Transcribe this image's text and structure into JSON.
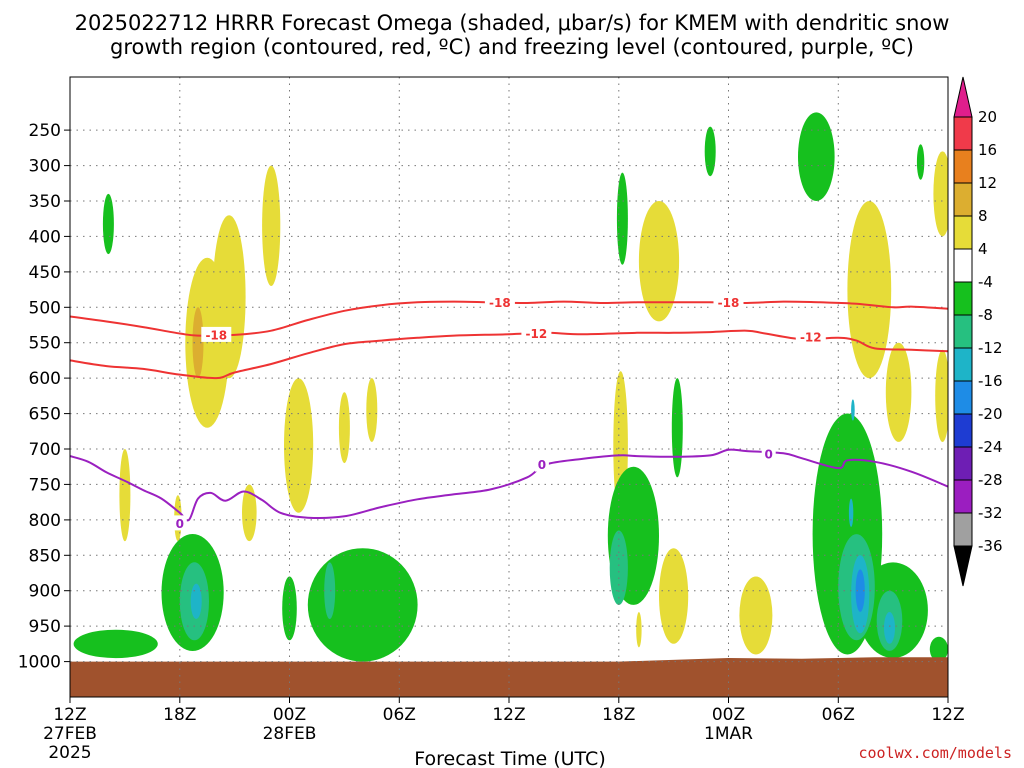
{
  "chart_data": {
    "type": "heatmap",
    "title": "2025022712 HRRR Forecast Omega (shaded, μbar/s) for KMEM with dendritic snow",
    "subtitle": "growth region (contoured, red, ºC) and freezing level (contoured, purple, ºC)",
    "xlabel": "Forecast Time (UTC)",
    "credit": "coolwx.com/models",
    "y_axis": {
      "ticks": [
        250,
        300,
        350,
        400,
        450,
        500,
        550,
        600,
        650,
        700,
        750,
        800,
        850,
        900,
        950,
        1000
      ],
      "labels": [
        "250",
        "300",
        "350",
        "400",
        "450",
        "500",
        "550",
        "600",
        "650",
        "700",
        "750",
        "800",
        "850",
        "900",
        "950",
        "1000"
      ],
      "range": [
        1050,
        175
      ]
    },
    "x_axis": {
      "range": [
        0,
        48
      ],
      "ticks": [
        {
          "h": 0,
          "label": "12Z",
          "sub1": "27FEB",
          "sub2": "2025"
        },
        {
          "h": 6,
          "label": "18Z",
          "sub1": "",
          "sub2": ""
        },
        {
          "h": 12,
          "label": "00Z",
          "sub1": "28FEB",
          "sub2": ""
        },
        {
          "h": 18,
          "label": "06Z",
          "sub1": "",
          "sub2": ""
        },
        {
          "h": 24,
          "label": "12Z",
          "sub1": "",
          "sub2": ""
        },
        {
          "h": 30,
          "label": "18Z",
          "sub1": "",
          "sub2": ""
        },
        {
          "h": 36,
          "label": "00Z",
          "sub1": "1MAR",
          "sub2": ""
        },
        {
          "h": 42,
          "label": "06Z",
          "sub1": "",
          "sub2": ""
        },
        {
          "h": 48,
          "label": "12Z",
          "sub1": "",
          "sub2": ""
        }
      ]
    },
    "grid": true,
    "colorbar": {
      "labels": [
        "20",
        "16",
        "12",
        "8",
        "4",
        "-4",
        "-8",
        "-12",
        "-16",
        "-20",
        "-24",
        "-28",
        "-32",
        "-36"
      ],
      "colors": [
        "#f03a4a",
        "#e8801e",
        "#dcae30",
        "#e6dc38",
        "#ffffff",
        "#16c01e",
        "#26c080",
        "#1eb4c8",
        "#1e8ce6",
        "#1e3cd2",
        "#6e1eb4",
        "#9b1ec0",
        "#a0a0a0"
      ],
      "top_arrow_color": "#e01e8c",
      "bottom_arrow_color": "#000000"
    },
    "contours": [
      {
        "level": "-18",
        "color": "#ee3333",
        "points": [
          [
            0,
            513
          ],
          [
            2,
            520
          ],
          [
            4,
            528
          ],
          [
            6,
            537
          ],
          [
            7,
            540
          ],
          [
            9,
            539
          ],
          [
            11,
            533
          ],
          [
            13,
            518
          ],
          [
            15,
            505
          ],
          [
            17,
            497
          ],
          [
            19,
            493
          ],
          [
            21,
            492
          ],
          [
            23,
            493
          ],
          [
            25,
            494
          ],
          [
            27,
            492
          ],
          [
            29,
            494
          ],
          [
            31,
            493
          ],
          [
            33,
            493
          ],
          [
            35,
            493
          ],
          [
            37,
            494
          ],
          [
            39,
            492
          ],
          [
            41,
            493
          ],
          [
            43,
            495
          ],
          [
            45,
            500
          ],
          [
            46,
            499
          ],
          [
            48,
            502
          ]
        ],
        "labels": [
          [
            23.5,
            493
          ],
          [
            36,
            493
          ],
          [
            8,
            539
          ]
        ]
      },
      {
        "level": "-12",
        "color": "#ee3333",
        "points": [
          [
            0,
            575
          ],
          [
            2,
            583
          ],
          [
            4,
            587
          ],
          [
            6,
            595
          ],
          [
            8,
            600
          ],
          [
            9,
            592
          ],
          [
            11,
            580
          ],
          [
            13,
            565
          ],
          [
            15,
            552
          ],
          [
            17,
            547
          ],
          [
            19,
            543
          ],
          [
            21,
            540
          ],
          [
            24,
            538
          ],
          [
            26,
            536
          ],
          [
            28,
            538
          ],
          [
            31,
            536
          ],
          [
            33,
            536
          ],
          [
            35,
            535
          ],
          [
            37,
            533
          ],
          [
            38,
            537
          ],
          [
            40,
            545
          ],
          [
            42,
            543
          ],
          [
            43,
            547
          ],
          [
            44,
            558
          ],
          [
            46,
            560
          ],
          [
            48,
            562
          ]
        ],
        "labels": [
          [
            25.5,
            537
          ],
          [
            40.5,
            542
          ]
        ]
      },
      {
        "level": "0",
        "color": "#9a20c0",
        "points": [
          [
            0,
            710
          ],
          [
            1,
            718
          ],
          [
            2,
            733
          ],
          [
            3,
            745
          ],
          [
            4,
            758
          ],
          [
            5,
            770
          ],
          [
            6,
            790
          ],
          [
            6.5,
            800
          ],
          [
            7,
            770
          ],
          [
            7.7,
            762
          ],
          [
            8.5,
            773
          ],
          [
            9.5,
            760
          ],
          [
            10.5,
            772
          ],
          [
            11.5,
            790
          ],
          [
            13,
            797
          ],
          [
            15,
            795
          ],
          [
            17,
            782
          ],
          [
            19,
            771
          ],
          [
            21,
            764
          ],
          [
            23,
            757
          ],
          [
            25,
            740
          ],
          [
            26,
            722
          ],
          [
            28,
            714
          ],
          [
            30,
            709
          ],
          [
            31,
            710
          ],
          [
            33,
            711
          ],
          [
            35,
            709
          ],
          [
            36,
            701
          ],
          [
            37,
            703
          ],
          [
            39,
            706
          ],
          [
            40,
            713
          ],
          [
            42,
            727
          ],
          [
            42.5,
            716
          ],
          [
            44,
            718
          ],
          [
            46,
            732
          ],
          [
            48,
            753
          ]
        ],
        "labels": [
          [
            6,
            805
          ],
          [
            25.8,
            722
          ],
          [
            38.2,
            707
          ]
        ]
      }
    ],
    "omega_regions": [
      {
        "color": "#e6dc38",
        "center": [
          7.5,
          510
        ],
        "half_w": 1.2,
        "p_top": 430,
        "p_bot": 670,
        "shape": "blob"
      },
      {
        "color": "#e6dc38",
        "center": [
          8.7,
          450
        ],
        "half_w": 0.9,
        "p_top": 370,
        "p_bot": 600,
        "shape": "blob"
      },
      {
        "color": "#dcae30",
        "center": [
          7,
          555
        ],
        "half_w": 0.3,
        "p_top": 500,
        "p_bot": 600,
        "shape": "blob"
      },
      {
        "color": "#e6dc38",
        "center": [
          11,
          370
        ],
        "half_w": 0.5,
        "p_top": 300,
        "p_bot": 470,
        "shape": "blob"
      },
      {
        "color": "#e6dc38",
        "center": [
          12.5,
          700
        ],
        "half_w": 0.8,
        "p_top": 600,
        "p_bot": 790,
        "shape": "blob"
      },
      {
        "color": "#e6dc38",
        "center": [
          15,
          665
        ],
        "half_w": 0.3,
        "p_top": 620,
        "p_bot": 720,
        "shape": "blob"
      },
      {
        "color": "#e6dc38",
        "center": [
          16.5,
          635
        ],
        "half_w": 0.3,
        "p_top": 600,
        "p_bot": 690,
        "shape": "blob"
      },
      {
        "color": "#e6dc38",
        "center": [
          3,
          770
        ],
        "half_w": 0.3,
        "p_top": 700,
        "p_bot": 830,
        "shape": "blob"
      },
      {
        "color": "#e6dc38",
        "center": [
          5.9,
          795
        ],
        "half_w": 0.2,
        "p_top": 765,
        "p_bot": 830,
        "shape": "blob"
      },
      {
        "color": "#e6dc38",
        "center": [
          9.8,
          790
        ],
        "half_w": 0.4,
        "p_top": 750,
        "p_bot": 830,
        "shape": "blob"
      },
      {
        "color": "#e6dc38",
        "center": [
          32.2,
          430
        ],
        "half_w": 1.1,
        "p_top": 350,
        "p_bot": 520,
        "shape": "blob"
      },
      {
        "color": "#e6dc38",
        "center": [
          30.1,
          720
        ],
        "half_w": 0.4,
        "p_top": 590,
        "p_bot": 800,
        "shape": "blob"
      },
      {
        "color": "#e6dc38",
        "center": [
          33,
          900
        ],
        "half_w": 0.8,
        "p_top": 840,
        "p_bot": 975,
        "shape": "blob"
      },
      {
        "color": "#e6dc38",
        "center": [
          31.1,
          950
        ],
        "half_w": 0.15,
        "p_top": 930,
        "p_bot": 980,
        "shape": "blob"
      },
      {
        "color": "#e6dc38",
        "center": [
          37.5,
          935
        ],
        "half_w": 0.9,
        "p_top": 880,
        "p_bot": 990,
        "shape": "blob"
      },
      {
        "color": "#e6dc38",
        "center": [
          43.7,
          460
        ],
        "half_w": 1.2,
        "p_top": 350,
        "p_bot": 600,
        "shape": "blob"
      },
      {
        "color": "#e6dc38",
        "center": [
          45.3,
          600
        ],
        "half_w": 0.7,
        "p_top": 550,
        "p_bot": 690,
        "shape": "blob"
      },
      {
        "color": "#e6dc38",
        "center": [
          47.7,
          330
        ],
        "half_w": 0.5,
        "p_top": 280,
        "p_bot": 400,
        "shape": "blob"
      },
      {
        "color": "#e6dc38",
        "center": [
          47.7,
          630
        ],
        "half_w": 0.4,
        "p_top": 560,
        "p_bot": 690,
        "shape": "blob"
      },
      {
        "color": "#e6dc38",
        "center": [
          42.7,
          755
        ],
        "half_w": 0.15,
        "p_top": 730,
        "p_bot": 780,
        "shape": "blob"
      },
      {
        "color": "#16c01e",
        "center": [
          2.1,
          380
        ],
        "half_w": 0.3,
        "p_top": 340,
        "p_bot": 425,
        "shape": "blob"
      },
      {
        "color": "#16c01e",
        "center": [
          6.7,
          920
        ],
        "half_w": 1.7,
        "p_top": 820,
        "p_bot": 985,
        "shape": "blob"
      },
      {
        "color": "#16c01e",
        "center": [
          2.5,
          975
        ],
        "half_w": 2.3,
        "p_top": 955,
        "p_bot": 995,
        "shape": "blob"
      },
      {
        "color": "#16c01e",
        "center": [
          12,
          920
        ],
        "half_w": 0.4,
        "p_top": 880,
        "p_bot": 970,
        "shape": "blob"
      },
      {
        "color": "#16c01e",
        "center": [
          16,
          920
        ],
        "half_w": 3.0,
        "p_top": 840,
        "p_bot": 1000,
        "shape": "blob"
      },
      {
        "color": "#16c01e",
        "center": [
          30.2,
          365
        ],
        "half_w": 0.3,
        "p_top": 310,
        "p_bot": 440,
        "shape": "blob"
      },
      {
        "color": "#16c01e",
        "center": [
          33.2,
          665
        ],
        "half_w": 0.3,
        "p_top": 600,
        "p_bot": 740,
        "shape": "blob"
      },
      {
        "color": "#16c01e",
        "center": [
          30.8,
          830
        ],
        "half_w": 1.4,
        "p_top": 725,
        "p_bot": 920,
        "shape": "blob"
      },
      {
        "color": "#16c01e",
        "center": [
          35,
          275
        ],
        "half_w": 0.3,
        "p_top": 245,
        "p_bot": 315,
        "shape": "blob"
      },
      {
        "color": "#16c01e",
        "center": [
          40.8,
          290
        ],
        "half_w": 1.0,
        "p_top": 225,
        "p_bot": 350,
        "shape": "blob"
      },
      {
        "color": "#16c01e",
        "center": [
          46.5,
          295
        ],
        "half_w": 0.2,
        "p_top": 270,
        "p_bot": 320,
        "shape": "blob"
      },
      {
        "color": "#16c01e",
        "center": [
          42.5,
          850
        ],
        "half_w": 1.9,
        "p_top": 650,
        "p_bot": 990,
        "shape": "blob"
      },
      {
        "color": "#16c01e",
        "center": [
          45,
          930
        ],
        "half_w": 1.9,
        "p_top": 860,
        "p_bot": 995,
        "shape": "blob"
      },
      {
        "color": "#16c01e",
        "center": [
          47.5,
          985
        ],
        "half_w": 0.5,
        "p_top": 965,
        "p_bot": 1000,
        "shape": "blob"
      },
      {
        "color": "#26c080",
        "center": [
          6.8,
          920
        ],
        "half_w": 0.8,
        "p_top": 860,
        "p_bot": 970,
        "shape": "blob"
      },
      {
        "color": "#26c080",
        "center": [
          14.2,
          900
        ],
        "half_w": 0.3,
        "p_top": 860,
        "p_bot": 940,
        "shape": "blob"
      },
      {
        "color": "#26c080",
        "center": [
          30,
          865
        ],
        "half_w": 0.5,
        "p_top": 815,
        "p_bot": 920,
        "shape": "blob"
      },
      {
        "color": "#26c080",
        "center": [
          43,
          890
        ],
        "half_w": 1.0,
        "p_top": 820,
        "p_bot": 970,
        "shape": "blob"
      },
      {
        "color": "#26c080",
        "center": [
          44.8,
          945
        ],
        "half_w": 0.7,
        "p_top": 900,
        "p_bot": 985,
        "shape": "blob"
      },
      {
        "color": "#1eb4c8",
        "center": [
          6.9,
          910
        ],
        "half_w": 0.3,
        "p_top": 890,
        "p_bot": 940,
        "shape": "blob"
      },
      {
        "color": "#1eb4c8",
        "center": [
          43.2,
          900
        ],
        "half_w": 0.5,
        "p_top": 850,
        "p_bot": 960,
        "shape": "blob"
      },
      {
        "color": "#1eb4c8",
        "center": [
          44.8,
          950
        ],
        "half_w": 0.3,
        "p_top": 930,
        "p_bot": 975,
        "shape": "blob"
      },
      {
        "color": "#1e8ce6",
        "center": [
          43.2,
          895
        ],
        "half_w": 0.25,
        "p_top": 870,
        "p_bot": 930,
        "shape": "blob"
      },
      {
        "color": "#1eb4c8",
        "center": [
          42.7,
          790
        ],
        "half_w": 0.12,
        "p_top": 770,
        "p_bot": 810,
        "shape": "blob"
      },
      {
        "color": "#1eb4c8",
        "center": [
          42.8,
          645
        ],
        "half_w": 0.1,
        "p_top": 630,
        "p_bot": 660,
        "shape": "blob"
      }
    ],
    "terrain": {
      "color": "#a0522d",
      "points": [
        [
          0,
          1000
        ],
        [
          30,
          1000
        ],
        [
          36,
          995
        ],
        [
          40,
          996
        ],
        [
          44,
          994
        ],
        [
          48,
          994
        ]
      ]
    }
  }
}
